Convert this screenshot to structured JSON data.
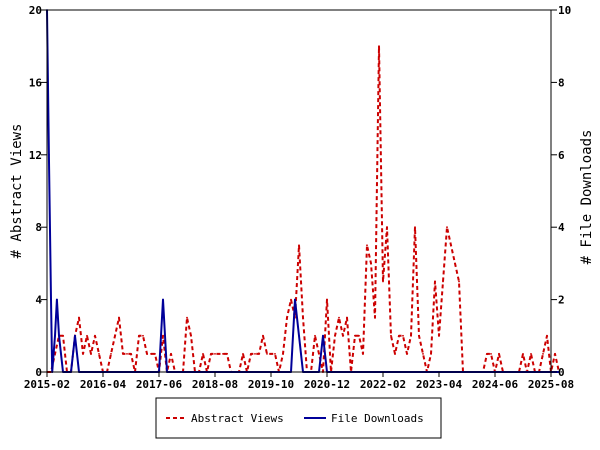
{
  "chart_data": {
    "type": "line",
    "x_ticks": [
      "2015-02",
      "2016-04",
      "2017-06",
      "2018-08",
      "2019-10",
      "2020-12",
      "2022-02",
      "2023-04",
      "2024-06",
      "2025-08"
    ],
    "xlabel": "",
    "ylabel_left": "# Abstract Views",
    "ylabel_right": "# File Downloads",
    "ylim_left": [
      0,
      20
    ],
    "ylim_right": [
      0,
      10
    ],
    "yticks_left": [
      0,
      4,
      8,
      12,
      16,
      20
    ],
    "yticks_right": [
      0,
      2,
      4,
      6,
      8,
      10
    ],
    "grid": false,
    "legend_position": "bottom-center",
    "series": [
      {
        "name": "Abstract Views",
        "axis": "left",
        "color": "#cc0000",
        "style": "dashed",
        "points": [
          [
            "2015-02",
            0
          ],
          [
            "2015-03",
            0
          ],
          [
            "2015-04",
            1
          ],
          [
            "2015-05",
            2
          ],
          [
            "2015-06",
            2
          ],
          [
            "2015-07",
            0
          ],
          [
            "2015-08",
            0
          ],
          [
            "2015-09",
            2
          ],
          [
            "2015-10",
            3
          ],
          [
            "2015-11",
            1
          ],
          [
            "2015-12",
            2
          ],
          [
            "2016-01",
            1
          ],
          [
            "2016-02",
            2
          ],
          [
            "2016-03",
            1
          ],
          [
            "2016-04",
            0
          ],
          [
            "2016-05",
            0
          ],
          [
            "2016-06",
            1
          ],
          [
            "2016-07",
            2
          ],
          [
            "2016-08",
            3
          ],
          [
            "2016-09",
            1
          ],
          [
            "2016-10",
            1
          ],
          [
            "2016-11",
            1
          ],
          [
            "2016-12",
            0
          ],
          [
            "2017-01",
            2
          ],
          [
            "2017-02",
            2
          ],
          [
            "2017-03",
            1
          ],
          [
            "2017-04",
            1
          ],
          [
            "2017-05",
            1
          ],
          [
            "2017-06",
            0
          ],
          [
            "2017-07",
            2
          ],
          [
            "2017-08",
            0
          ],
          [
            "2017-09",
            1
          ],
          [
            "2017-10",
            0
          ],
          [
            "2017-11",
            0
          ],
          [
            "2017-12",
            0
          ],
          [
            "2018-01",
            3
          ],
          [
            "2018-02",
            2
          ],
          [
            "2018-03",
            0
          ],
          [
            "2018-04",
            0
          ],
          [
            "2018-05",
            1
          ],
          [
            "2018-06",
            0
          ],
          [
            "2018-07",
            1
          ],
          [
            "2018-08",
            1
          ],
          [
            "2018-09",
            1
          ],
          [
            "2018-10",
            1
          ],
          [
            "2018-11",
            1
          ],
          [
            "2018-12",
            0
          ],
          [
            "2019-01",
            0
          ],
          [
            "2019-02",
            0
          ],
          [
            "2019-03",
            1
          ],
          [
            "2019-04",
            0
          ],
          [
            "2019-05",
            1
          ],
          [
            "2019-06",
            1
          ],
          [
            "2019-07",
            1
          ],
          [
            "2019-08",
            2
          ],
          [
            "2019-09",
            1
          ],
          [
            "2019-10",
            1
          ],
          [
            "2019-11",
            1
          ],
          [
            "2019-12",
            0
          ],
          [
            "2020-01",
            1
          ],
          [
            "2020-02",
            3
          ],
          [
            "2020-03",
            4
          ],
          [
            "2020-04",
            3
          ],
          [
            "2020-05",
            7
          ],
          [
            "2020-06",
            3
          ],
          [
            "2020-07",
            0
          ],
          [
            "2020-08",
            0
          ],
          [
            "2020-09",
            2
          ],
          [
            "2020-10",
            1
          ],
          [
            "2020-11",
            0
          ],
          [
            "2020-12",
            4
          ],
          [
            "2021-01",
            0
          ],
          [
            "2021-02",
            2
          ],
          [
            "2021-03",
            3
          ],
          [
            "2021-04",
            2
          ],
          [
            "2021-05",
            3
          ],
          [
            "2021-06",
            0
          ],
          [
            "2021-07",
            2
          ],
          [
            "2021-08",
            2
          ],
          [
            "2021-09",
            1
          ],
          [
            "2021-10",
            7
          ],
          [
            "2021-11",
            6
          ],
          [
            "2021-12",
            3
          ],
          [
            "2022-01",
            18
          ],
          [
            "2022-02",
            5
          ],
          [
            "2022-03",
            8
          ],
          [
            "2022-04",
            2
          ],
          [
            "2022-05",
            1
          ],
          [
            "2022-06",
            2
          ],
          [
            "2022-07",
            2
          ],
          [
            "2022-08",
            1
          ],
          [
            "2022-09",
            2
          ],
          [
            "2022-10",
            8
          ],
          [
            "2022-11",
            2
          ],
          [
            "2022-12",
            1
          ],
          [
            "2023-01",
            0
          ],
          [
            "2023-02",
            1
          ],
          [
            "2023-03",
            5
          ],
          [
            "2023-04",
            2
          ],
          [
            "2023-05",
            5
          ],
          [
            "2023-06",
            8
          ],
          [
            "2023-07",
            7
          ],
          [
            "2023-08",
            6
          ],
          [
            "2023-09",
            5
          ],
          [
            "2023-10",
            0
          ],
          [
            "2023-11",
            0
          ],
          [
            "2023-12",
            0
          ],
          [
            "2024-01",
            0
          ],
          [
            "2024-02",
            0
          ],
          [
            "2024-03",
            0
          ],
          [
            "2024-04",
            1
          ],
          [
            "2024-05",
            1
          ],
          [
            "2024-06",
            0
          ],
          [
            "2024-07",
            1
          ],
          [
            "2024-08",
            0
          ],
          [
            "2024-09",
            0
          ],
          [
            "2024-10",
            0
          ],
          [
            "2024-11",
            0
          ],
          [
            "2024-12",
            0
          ],
          [
            "2025-01",
            1
          ],
          [
            "2025-02",
            0
          ],
          [
            "2025-03",
            1
          ],
          [
            "2025-04",
            0
          ],
          [
            "2025-05",
            0
          ],
          [
            "2025-06",
            1
          ],
          [
            "2025-07",
            2
          ],
          [
            "2025-08",
            0
          ],
          [
            "2025-09",
            1
          ],
          [
            "2025-10",
            0
          ]
        ]
      },
      {
        "name": "File Downloads",
        "axis": "right",
        "color": "#000099",
        "style": "solid",
        "points": [
          [
            "2015-02",
            10
          ],
          [
            "2015-02-15",
            6
          ],
          [
            "2015-03",
            2
          ],
          [
            "2015-03-10",
            0
          ],
          [
            "2015-04",
            1
          ],
          [
            "2015-04-15",
            2
          ],
          [
            "2015-05",
            1
          ],
          [
            "2015-06",
            0
          ],
          [
            "2015-07",
            0
          ],
          [
            "2015-08",
            0
          ],
          [
            "2015-09",
            1
          ],
          [
            "2015-10",
            0
          ],
          [
            "2015-11",
            0
          ],
          [
            "2015-12",
            0
          ],
          [
            "2016-01",
            0
          ],
          [
            "2016-02",
            0
          ],
          [
            "2016-03",
            0
          ],
          [
            "2016-04",
            0
          ],
          [
            "2016-05",
            0
          ],
          [
            "2016-06",
            0
          ],
          [
            "2016-07",
            0
          ],
          [
            "2016-08",
            0
          ],
          [
            "2016-09",
            0
          ],
          [
            "2016-10",
            0
          ],
          [
            "2016-11",
            0
          ],
          [
            "2016-12",
            0
          ],
          [
            "2017-01",
            0
          ],
          [
            "2017-02",
            0
          ],
          [
            "2017-03",
            0
          ],
          [
            "2017-04",
            0
          ],
          [
            "2017-05",
            0
          ],
          [
            "2017-06",
            0
          ],
          [
            "2017-07",
            2
          ],
          [
            "2017-08",
            0
          ],
          [
            "2017-09",
            0
          ],
          [
            "2017-10",
            0
          ],
          [
            "2017-11",
            0
          ],
          [
            "2017-12",
            0
          ],
          [
            "2018-01",
            0
          ],
          [
            "2018-02",
            0
          ],
          [
            "2018-03",
            0
          ],
          [
            "2018-04",
            0
          ],
          [
            "2018-05",
            0
          ],
          [
            "2018-06",
            0
          ],
          [
            "2018-07",
            0
          ],
          [
            "2018-08",
            0
          ],
          [
            "2018-09",
            0
          ],
          [
            "2018-10",
            0
          ],
          [
            "2018-11",
            0
          ],
          [
            "2018-12",
            0
          ],
          [
            "2019-01",
            0
          ],
          [
            "2019-02",
            0
          ],
          [
            "2019-03",
            0
          ],
          [
            "2019-04",
            0
          ],
          [
            "2019-05",
            0
          ],
          [
            "2019-06",
            0
          ],
          [
            "2019-07",
            0
          ],
          [
            "2019-08",
            0
          ],
          [
            "2019-09",
            0
          ],
          [
            "2019-10",
            0
          ],
          [
            "2019-11",
            0
          ],
          [
            "2019-12",
            0
          ],
          [
            "2020-01",
            0
          ],
          [
            "2020-02",
            0
          ],
          [
            "2020-03",
            0
          ],
          [
            "2020-04",
            2
          ],
          [
            "2020-05",
            1
          ],
          [
            "2020-06",
            0
          ],
          [
            "2020-07",
            0
          ],
          [
            "2020-08",
            0
          ],
          [
            "2020-09",
            0
          ],
          [
            "2020-10",
            0
          ],
          [
            "2020-11",
            1
          ],
          [
            "2020-12",
            0
          ],
          [
            "2021-01",
            0
          ],
          [
            "2021-02",
            0
          ],
          [
            "2021-03",
            0
          ],
          [
            "2021-04",
            0
          ],
          [
            "2021-05",
            0
          ],
          [
            "2021-06",
            0
          ],
          [
            "2022-01",
            0
          ],
          [
            "2023-01",
            0
          ],
          [
            "2024-01",
            0
          ],
          [
            "2025-01",
            0
          ],
          [
            "2025-10",
            0
          ]
        ]
      }
    ]
  }
}
